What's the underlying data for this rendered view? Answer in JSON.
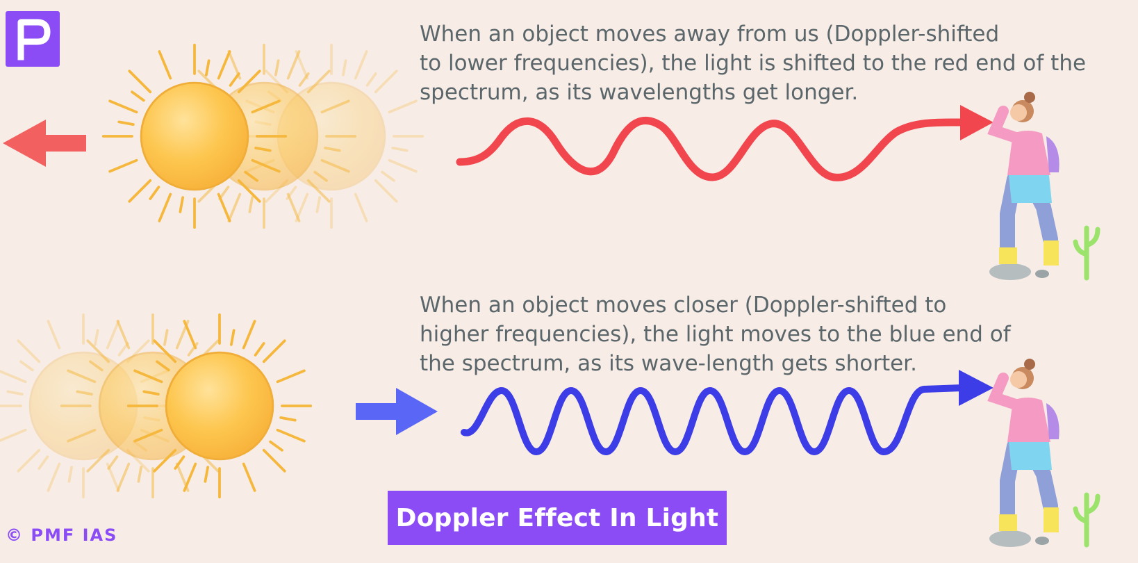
{
  "brand": {
    "logo_letter": "P",
    "copyright": "© PMF IAS",
    "accent_color": "#8b4cf6"
  },
  "title": "Doppler Effect In Light",
  "panels": [
    {
      "id": "redshift",
      "caption_lines": [
        "When an object moves away from us (Doppler-shifted",
        "to lower frequencies), the light is shifted to the red end of the",
        "spectrum, as its wavelengths get longer."
      ],
      "source_direction": "left",
      "wave_color": "#f2464f",
      "arrow_color": "#f26060",
      "icons": [
        "sun-icon",
        "left-arrow-icon",
        "red-wave-icon",
        "observer-icon"
      ]
    },
    {
      "id": "blueshift",
      "caption_lines": [
        "When an object moves closer (Doppler-shifted to",
        "higher frequencies), the light moves to the blue end of",
        "the spectrum, as its wave-length gets shorter."
      ],
      "source_direction": "right",
      "wave_color": "#3d3de8",
      "arrow_color": "#5a66f5",
      "icons": [
        "sun-icon",
        "right-arrow-icon",
        "blue-wave-icon",
        "observer-icon"
      ]
    }
  ]
}
